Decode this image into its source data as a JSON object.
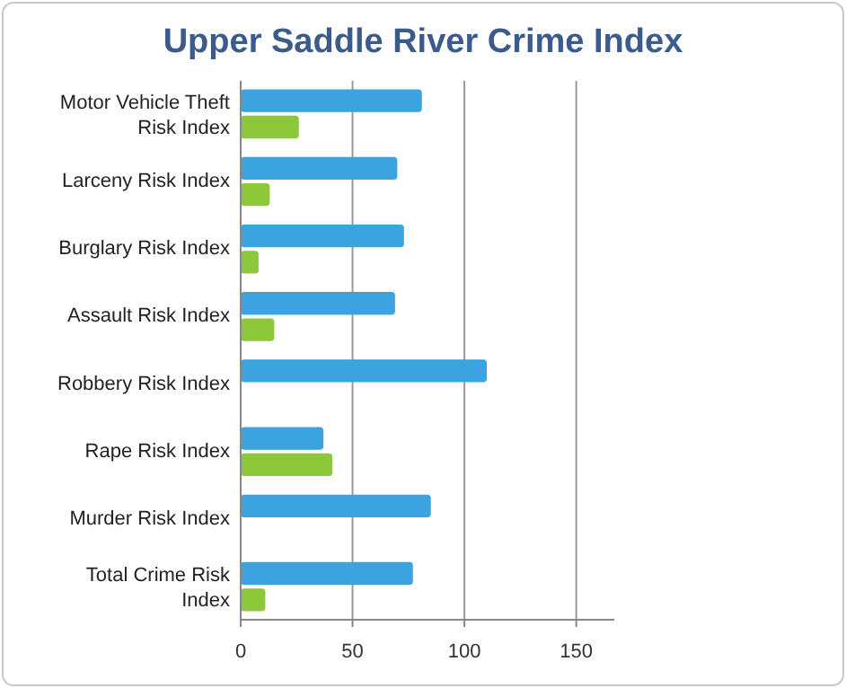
{
  "chart_data": {
    "type": "bar",
    "orientation": "horizontal",
    "title": "Upper Saddle River Crime Index",
    "categories": [
      "Motor Vehicle Theft Risk Index",
      "Larceny Risk Index",
      "Burglary Risk Index",
      "Assault Risk Index",
      "Robbery Risk Index",
      "Rape Risk Index",
      "Murder Risk Index",
      "Total Crime Risk Index"
    ],
    "series": [
      {
        "color": "#3ba3e0",
        "values": [
          81,
          70,
          73,
          69,
          110,
          37,
          85,
          77
        ]
      },
      {
        "color": "#8cc83a",
        "values": [
          26,
          13,
          8,
          15,
          null,
          41,
          null,
          11
        ]
      }
    ],
    "xlim": [
      0,
      167
    ],
    "xticks": [
      0,
      50,
      100,
      150
    ],
    "grid": "x"
  }
}
